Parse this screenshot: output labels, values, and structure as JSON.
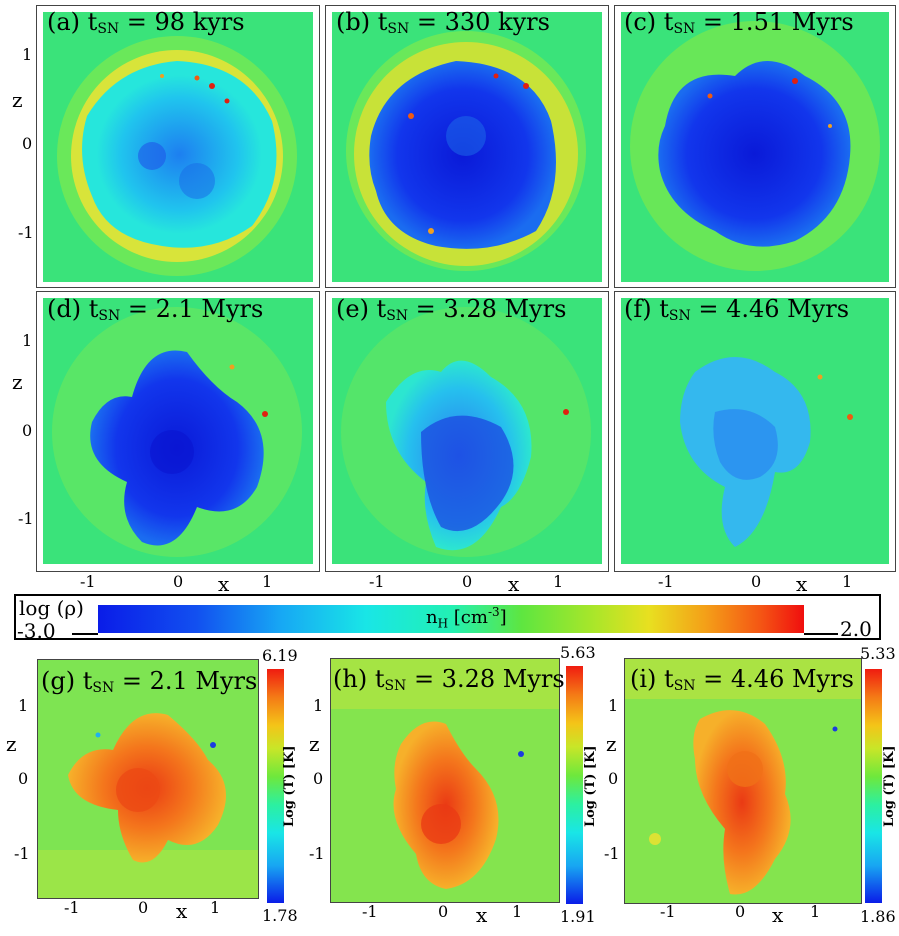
{
  "density_panels": [
    {
      "label": "(a) t",
      "sub": "SN",
      "time": " =  98 kyrs"
    },
    {
      "label": "(b) t",
      "sub": "SN",
      "time": " =  330 kyrs"
    },
    {
      "label": "(c) t",
      "sub": "SN",
      "time": " = 1.51 Myrs"
    },
    {
      "label": "(d) t",
      "sub": "SN",
      "time": " = 2.1 Myrs"
    },
    {
      "label": "(e) t",
      "sub": "SN",
      "time": " = 3.28 Myrs"
    },
    {
      "label": "(f) t",
      "sub": "SN",
      "time": " = 4.46 Myrs"
    }
  ],
  "temperature_panels": [
    {
      "label": "(g) t",
      "sub": "SN",
      "time": " = 2.1 Myrs",
      "cbar_max": "6.19",
      "cbar_min": "1.78"
    },
    {
      "label": "(h) t",
      "sub": "SN",
      "time": " = 3.28 Myrs",
      "cbar_max": "5.63",
      "cbar_min": "1.91"
    },
    {
      "label": "(i) t",
      "sub": "SN",
      "time": " = 4.46 Myrs",
      "cbar_max": "5.33",
      "cbar_min": "1.86"
    }
  ],
  "axes": {
    "z_label": "z",
    "x_label": "x",
    "z_ticks": [
      "1",
      "0",
      "-1"
    ],
    "x_ticks": [
      "-1",
      "0",
      "1"
    ]
  },
  "density_colorbar": {
    "title": "log (ρ)",
    "min": "-3.0",
    "max": "2.0",
    "unit_main": "n",
    "unit_sub": "H",
    "unit_rest": " [cm",
    "unit_sup": "-3",
    "unit_end": "]"
  },
  "temp_colorbar_label": "Log (T) [K]"
}
